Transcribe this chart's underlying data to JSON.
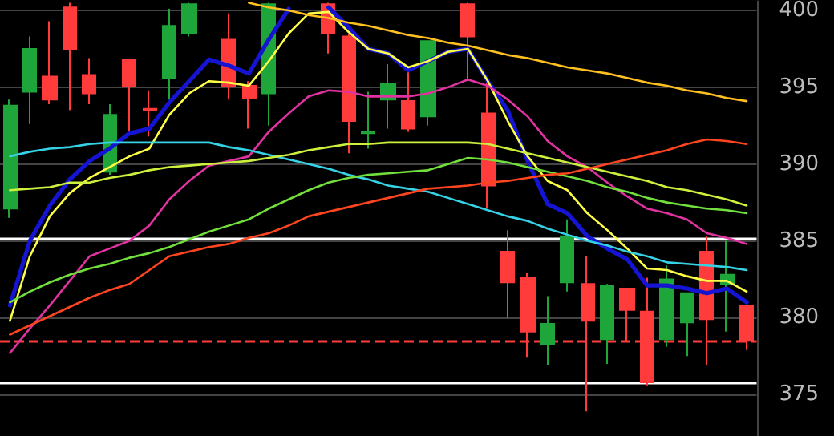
{
  "chart_data": {
    "type": "candlestick",
    "categories": [
      null,
      null,
      null,
      null,
      null,
      null,
      null,
      null,
      null,
      null,
      null,
      null,
      null,
      null,
      null,
      null,
      null,
      null,
      null,
      null,
      null,
      null,
      null,
      null,
      null,
      null,
      null,
      null,
      null,
      null,
      null,
      null,
      null,
      null,
      null,
      null,
      null,
      null
    ],
    "ohlc": [
      [
        387.1,
        394.2,
        386.5,
        393.8
      ],
      [
        394.7,
        398.3,
        392.6,
        397.5
      ],
      [
        395.7,
        399.3,
        393.9,
        394.2
      ],
      [
        400.2,
        400.5,
        393.5,
        397.5
      ],
      [
        395.8,
        396.9,
        393.9,
        394.6
      ],
      [
        389.5,
        393.9,
        389.3,
        393.2
      ],
      [
        396.8,
        396.8,
        392.1,
        395.1
      ],
      [
        393.6,
        394.8,
        391.8,
        393.5
      ],
      [
        395.6,
        400.1,
        394.2,
        399.0
      ],
      [
        398.5,
        400.5,
        398.3,
        400.4
      ],
      null,
      [
        398.1,
        399.8,
        394.2,
        395.1
      ],
      [
        395.1,
        395.4,
        392.3,
        394.3
      ],
      [
        394.6,
        400.5,
        392.5,
        400.4
      ],
      null,
      null,
      [
        400.4,
        400.5,
        397.2,
        398.5
      ],
      [
        398.3,
        398.5,
        390.7,
        392.8
      ],
      [
        392.0,
        394.7,
        391.0,
        392.1
      ],
      [
        394.2,
        396.5,
        392.3,
        395.2
      ],
      [
        394.1,
        396.3,
        392.1,
        392.3
      ],
      [
        393.1,
        398.0,
        392.5,
        398.0
      ],
      null,
      [
        400.4,
        400.5,
        395.4,
        398.3
      ],
      [
        393.3,
        395.4,
        387.1,
        388.6
      ],
      [
        384.3,
        385.7,
        380.0,
        382.3
      ],
      [
        382.6,
        382.9,
        377.4,
        379.1
      ],
      [
        378.3,
        381.4,
        376.9,
        379.6
      ],
      [
        382.3,
        386.4,
        381.7,
        385.3
      ],
      [
        382.2,
        384.0,
        373.9,
        379.8
      ],
      [
        378.6,
        382.2,
        377.0,
        382.1
      ],
      [
        381.9,
        381.9,
        378.5,
        380.5
      ],
      [
        380.4,
        382.6,
        375.6,
        375.8
      ],
      [
        378.6,
        383.4,
        378.1,
        382.5
      ],
      [
        379.7,
        381.6,
        377.5,
        381.6
      ],
      [
        384.3,
        385.3,
        376.9,
        379.9
      ],
      [
        382.2,
        385.0,
        379.1,
        382.8
      ],
      [
        380.8,
        380.8,
        377.9,
        378.5
      ]
    ],
    "colors": [
      "#1fa63a",
      "#1fa63a",
      "#ff3b3b",
      "#ff3b3b",
      "#ff3b3b",
      "#1fa63a",
      "#ff3b3b",
      "#ff3b3b",
      "#1fa63a",
      "#1fa63a",
      null,
      "#ff3b3b",
      "#ff3b3b",
      "#1fa63a",
      null,
      null,
      "#ff3b3b",
      "#ff3b3b",
      "#1fa63a",
      "#1fa63a",
      "#ff3b3b",
      "#1fa63a",
      null,
      "#ff3b3b",
      "#ff3b3b",
      "#ff3b3b",
      "#ff3b3b",
      "#1fa63a",
      "#1fa63a",
      "#ff3b3b",
      "#1fa63a",
      "#ff3b3b",
      "#ff3b3b",
      "#1fa63a",
      "#1fa63a",
      "#ff3b3b",
      "#1fa63a",
      "#ff3b3b"
    ],
    "series": [
      {
        "type": "line",
        "color": "#1414d2",
        "values": [
          380.8,
          385.0,
          387.3,
          389.0,
          390.2,
          391.0,
          392.0,
          392.3,
          394.0,
          395.4,
          396.8,
          396.4,
          395.9,
          398.1,
          400.1,
          null,
          400.2,
          398.9,
          397.5,
          397.2,
          396.1,
          396.7,
          397.3,
          397.5,
          395.4,
          393.5,
          390.2,
          387.4,
          386.8,
          385.3,
          384.5,
          383.8,
          382.1,
          382.1,
          381.9,
          381.6,
          381.9,
          381.0
        ]
      },
      {
        "type": "line",
        "color": "#ffff45",
        "values": [
          379.8,
          384.0,
          386.6,
          388.1,
          389.1,
          389.8,
          390.5,
          391.0,
          393.2,
          394.6,
          395.4,
          395.3,
          395.1,
          396.7,
          398.5,
          399.8,
          399.9,
          398.6,
          397.5,
          397.2,
          396.3,
          396.7,
          397.3,
          397.5,
          395.4,
          392.8,
          390.5,
          388.9,
          388.3,
          386.8,
          385.7,
          384.5,
          383.2,
          383.1,
          382.7,
          382.4,
          382.4,
          381.7
        ]
      },
      {
        "type": "line",
        "color": "#e032a0",
        "values": [
          377.7,
          379.3,
          380.8,
          382.4,
          384.0,
          384.5,
          385.0,
          386.0,
          387.7,
          388.9,
          389.9,
          390.2,
          390.5,
          392.1,
          393.3,
          394.4,
          394.8,
          394.7,
          394.4,
          394.4,
          394.4,
          394.6,
          395.0,
          395.5,
          395.1,
          394.2,
          393.1,
          391.5,
          390.5,
          389.8,
          388.8,
          387.9,
          387.1,
          386.8,
          386.4,
          385.5,
          385.2,
          384.8
        ]
      },
      {
        "type": "line",
        "color": "#35d2e6",
        "values": [
          390.5,
          390.8,
          391.0,
          391.1,
          391.3,
          391.4,
          391.4,
          391.4,
          391.4,
          391.4,
          391.4,
          391.1,
          390.9,
          390.6,
          390.3,
          390.0,
          389.7,
          389.3,
          389.0,
          388.6,
          388.4,
          388.2,
          387.8,
          387.4,
          387.0,
          386.6,
          386.3,
          385.8,
          385.4,
          385.0,
          384.7,
          384.3,
          384.0,
          383.6,
          383.5,
          383.4,
          383.3,
          383.1
        ]
      },
      {
        "type": "line",
        "color": "#cdf03c",
        "values": [
          388.3,
          388.4,
          388.5,
          388.8,
          388.8,
          389.1,
          389.3,
          389.6,
          389.8,
          389.9,
          390.0,
          390.1,
          390.2,
          390.4,
          390.6,
          390.9,
          391.1,
          391.3,
          391.3,
          391.4,
          391.4,
          391.4,
          391.4,
          391.4,
          391.3,
          391.0,
          390.7,
          390.4,
          390.1,
          389.8,
          389.5,
          389.2,
          388.9,
          388.5,
          388.3,
          388.0,
          387.7,
          387.3
        ]
      },
      {
        "type": "line",
        "color": "#72e03c",
        "values": [
          381.0,
          381.7,
          382.3,
          382.8,
          383.2,
          383.5,
          383.9,
          384.2,
          384.6,
          385.1,
          385.6,
          386.0,
          386.4,
          387.1,
          387.7,
          388.3,
          388.8,
          389.1,
          389.3,
          389.4,
          389.5,
          389.6,
          390.0,
          390.4,
          390.3,
          390.1,
          389.8,
          389.5,
          389.2,
          388.9,
          388.5,
          388.2,
          387.8,
          387.5,
          387.3,
          387.1,
          387.0,
          386.8
        ]
      },
      {
        "type": "line",
        "color": "#ff4520",
        "values": [
          378.9,
          379.5,
          380.1,
          380.7,
          381.3,
          381.8,
          382.2,
          383.1,
          384.0,
          384.3,
          384.6,
          384.8,
          385.2,
          385.5,
          386.0,
          386.6,
          386.9,
          387.2,
          387.5,
          387.8,
          388.1,
          388.4,
          388.5,
          388.6,
          388.8,
          388.9,
          389.1,
          389.3,
          389.4,
          389.7,
          390.0,
          390.3,
          390.6,
          390.9,
          391.3,
          391.6,
          391.5,
          391.3
        ]
      },
      {
        "type": "line",
        "color": "#ffc020",
        "values": [
          null,
          null,
          null,
          null,
          null,
          null,
          null,
          null,
          null,
          null,
          null,
          null,
          400.5,
          400.2,
          400.0,
          399.7,
          399.5,
          399.2,
          399.0,
          398.7,
          398.4,
          398.2,
          397.9,
          397.7,
          397.4,
          397.1,
          396.9,
          396.6,
          396.3,
          396.1,
          395.9,
          395.6,
          395.3,
          395.1,
          394.8,
          394.6,
          394.3,
          394.1
        ]
      }
    ],
    "ylim": [
      372.3,
      400.6
    ],
    "yticks": [
      375,
      380,
      385,
      390,
      395,
      400
    ],
    "grid": "y",
    "tick_labels": "y",
    "marker": "none",
    "line_style": "solid",
    "ref_lines": [
      {
        "axis": "y",
        "value": 385.2,
        "color": "#ffffff",
        "line_style": "solid"
      },
      {
        "axis": "y",
        "value": 375.8,
        "color": "#ffffff",
        "line_style": "solid"
      },
      {
        "axis": "y",
        "value": 378.5,
        "color": "#ff3b3b",
        "line_style": "dashed"
      }
    ]
  }
}
